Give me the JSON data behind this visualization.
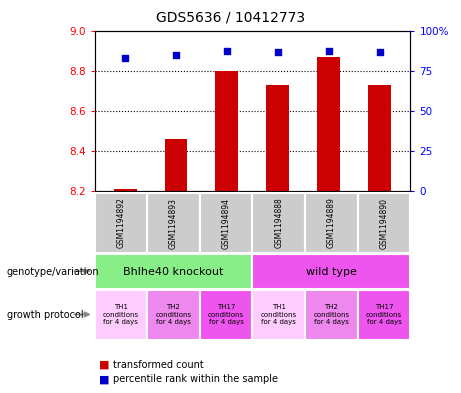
{
  "title": "GDS5636 / 10412773",
  "samples": [
    "GSM1194892",
    "GSM1194893",
    "GSM1194894",
    "GSM1194888",
    "GSM1194889",
    "GSM1194890"
  ],
  "transformed_count": [
    8.21,
    8.46,
    8.8,
    8.73,
    8.87,
    8.73
  ],
  "percentile_rank": [
    83,
    85,
    88,
    87,
    88,
    87
  ],
  "ylim_left": [
    8.2,
    9.0
  ],
  "ylim_right": [
    0,
    100
  ],
  "yticks_left": [
    8.2,
    8.4,
    8.6,
    8.8,
    9.0
  ],
  "yticks_right": [
    0,
    25,
    50,
    75,
    100
  ],
  "bar_color": "#cc0000",
  "dot_color": "#0000cc",
  "bar_bottom": 8.2,
  "genotype_groups": [
    {
      "label": "Bhlhe40 knockout",
      "start": 0,
      "end": 3,
      "color": "#88ee88"
    },
    {
      "label": "wild type",
      "start": 3,
      "end": 6,
      "color": "#ee55ee"
    }
  ],
  "growth_protocol_labels": [
    "TH1\nconditions\nfor 4 days",
    "TH2\nconditions\nfor 4 days",
    "TH17\nconditions\nfor 4 days",
    "TH1\nconditions\nfor 4 days",
    "TH2\nconditions\nfor 4 days",
    "TH17\nconditions\nfor 4 days"
  ],
  "growth_protocol_colors": [
    "#ffccff",
    "#ee88ee",
    "#ee55ee",
    "#ffccff",
    "#ee88ee",
    "#ee55ee"
  ],
  "left_label_genotype": "genotype/variation",
  "left_label_growth": "growth protocol",
  "legend_bar": "transformed count",
  "legend_dot": "percentile rank within the sample",
  "background_color": "#ffffff",
  "sample_bg_color": "#cccccc",
  "grid_yticks": [
    8.4,
    8.6,
    8.8
  ]
}
